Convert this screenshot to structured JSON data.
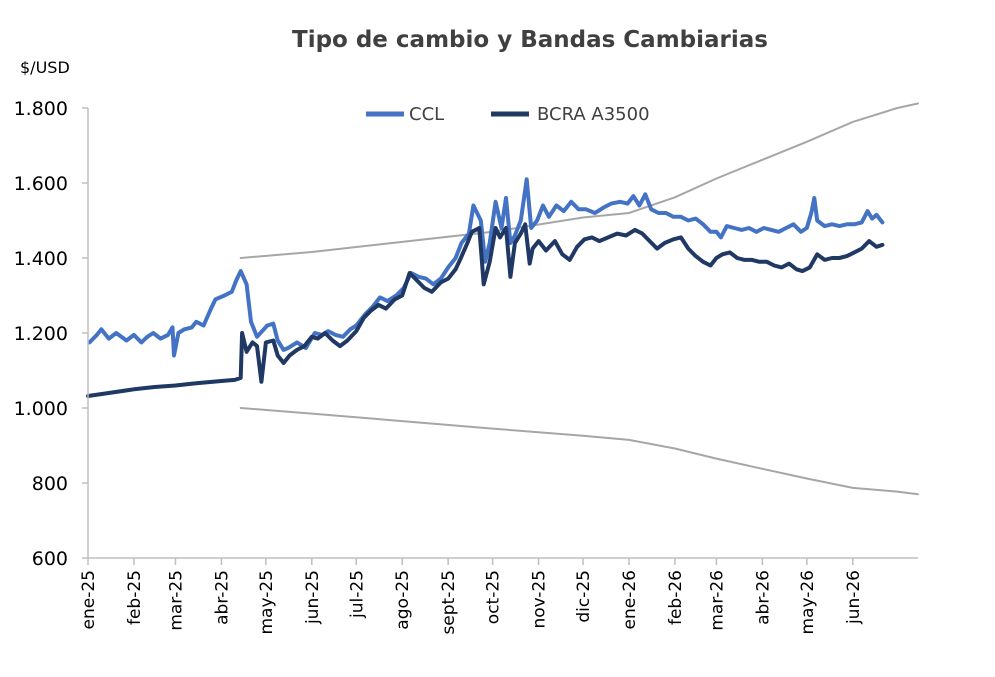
{
  "chart_data": {
    "type": "line",
    "title": "Tipo de cambio y Bandas Cambiarias",
    "ylabel": "$/USD",
    "xlabel": "",
    "ylim": [
      600,
      1800
    ],
    "yticks": [
      600,
      800,
      1000,
      1200,
      1400,
      1600,
      1800
    ],
    "ytick_labels": [
      "600",
      "800",
      "1.000",
      "1.200",
      "1.400",
      "1.600",
      "1.800"
    ],
    "x_start": "2025-01-01",
    "x_end": "2026-07-15",
    "x_tick_dates": [
      "2025-01-01",
      "2025-02-01",
      "2025-03-01",
      "2025-04-01",
      "2025-05-01",
      "2025-06-01",
      "2025-07-01",
      "2025-08-01",
      "2025-09-01",
      "2025-10-01",
      "2025-11-01",
      "2025-12-01",
      "2026-01-01",
      "2026-02-01",
      "2026-03-01",
      "2026-04-01",
      "2026-05-01",
      "2026-06-01"
    ],
    "x_tick_labels": [
      "ene-25",
      "feb-25",
      "mar-25",
      "abr-25",
      "may-25",
      "jun-25",
      "jul-25",
      "ago-25",
      "sept-25",
      "oct-25",
      "nov-25",
      "dic-25",
      "ene-26",
      "feb-26",
      "mar-26",
      "abr-26",
      "may-26",
      "jun-26"
    ],
    "legend_position": "top-center",
    "grid": false,
    "series": [
      {
        "name": "CCL",
        "color": "#4472C4",
        "points": [
          [
            "2025-01-02",
            1175
          ],
          [
            "2025-01-07",
            1195
          ],
          [
            "2025-01-10",
            1210
          ],
          [
            "2025-01-15",
            1185
          ],
          [
            "2025-01-20",
            1200
          ],
          [
            "2025-01-27",
            1180
          ],
          [
            "2025-02-01",
            1195
          ],
          [
            "2025-02-06",
            1175
          ],
          [
            "2025-02-10",
            1190
          ],
          [
            "2025-02-14",
            1200
          ],
          [
            "2025-02-19",
            1185
          ],
          [
            "2025-02-24",
            1195
          ],
          [
            "2025-02-27",
            1215
          ],
          [
            "2025-02-28",
            1140
          ],
          [
            "2025-03-03",
            1200
          ],
          [
            "2025-03-07",
            1210
          ],
          [
            "2025-03-12",
            1215
          ],
          [
            "2025-03-15",
            1230
          ],
          [
            "2025-03-20",
            1220
          ],
          [
            "2025-03-25",
            1265
          ],
          [
            "2025-03-28",
            1290
          ],
          [
            "2025-04-03",
            1300
          ],
          [
            "2025-04-08",
            1310
          ],
          [
            "2025-04-11",
            1340
          ],
          [
            "2025-04-14",
            1365
          ],
          [
            "2025-04-18",
            1330
          ],
          [
            "2025-04-21",
            1230
          ],
          [
            "2025-04-25",
            1190
          ],
          [
            "2025-05-02",
            1220
          ],
          [
            "2025-05-06",
            1225
          ],
          [
            "2025-05-09",
            1180
          ],
          [
            "2025-05-13",
            1155
          ],
          [
            "2025-05-16",
            1160
          ],
          [
            "2025-05-22",
            1175
          ],
          [
            "2025-05-28",
            1160
          ],
          [
            "2025-06-03",
            1200
          ],
          [
            "2025-06-08",
            1195
          ],
          [
            "2025-06-12",
            1205
          ],
          [
            "2025-06-17",
            1195
          ],
          [
            "2025-06-22",
            1190
          ],
          [
            "2025-06-27",
            1210
          ],
          [
            "2025-07-01",
            1220
          ],
          [
            "2025-07-07",
            1250
          ],
          [
            "2025-07-12",
            1270
          ],
          [
            "2025-07-17",
            1295
          ],
          [
            "2025-07-22",
            1285
          ],
          [
            "2025-07-28",
            1300
          ],
          [
            "2025-08-02",
            1320
          ],
          [
            "2025-08-07",
            1360
          ],
          [
            "2025-08-12",
            1350
          ],
          [
            "2025-08-17",
            1345
          ],
          [
            "2025-08-22",
            1330
          ],
          [
            "2025-08-27",
            1345
          ],
          [
            "2025-09-01",
            1375
          ],
          [
            "2025-09-06",
            1400
          ],
          [
            "2025-09-10",
            1440
          ],
          [
            "2025-09-15",
            1465
          ],
          [
            "2025-09-18",
            1540
          ],
          [
            "2025-09-23",
            1500
          ],
          [
            "2025-09-26",
            1390
          ],
          [
            "2025-09-29",
            1440
          ],
          [
            "2025-10-03",
            1550
          ],
          [
            "2025-10-07",
            1480
          ],
          [
            "2025-10-10",
            1560
          ],
          [
            "2025-10-13",
            1440
          ],
          [
            "2025-10-16",
            1460
          ],
          [
            "2025-10-20",
            1500
          ],
          [
            "2025-10-24",
            1610
          ],
          [
            "2025-10-27",
            1480
          ],
          [
            "2025-10-31",
            1500
          ],
          [
            "2025-11-04",
            1540
          ],
          [
            "2025-11-08",
            1510
          ],
          [
            "2025-11-13",
            1540
          ],
          [
            "2025-11-18",
            1525
          ],
          [
            "2025-11-23",
            1550
          ],
          [
            "2025-11-28",
            1530
          ],
          [
            "2025-12-03",
            1530
          ],
          [
            "2025-12-09",
            1520
          ],
          [
            "2025-12-15",
            1535
          ],
          [
            "2025-12-20",
            1545
          ],
          [
            "2025-12-26",
            1550
          ],
          [
            "2025-12-31",
            1545
          ],
          [
            "2026-01-04",
            1565
          ],
          [
            "2026-01-08",
            1540
          ],
          [
            "2026-01-12",
            1570
          ],
          [
            "2026-01-16",
            1530
          ],
          [
            "2026-01-21",
            1520
          ],
          [
            "2026-01-26",
            1520
          ],
          [
            "2026-01-31",
            1510
          ],
          [
            "2026-02-05",
            1510
          ],
          [
            "2026-02-10",
            1500
          ],
          [
            "2026-02-15",
            1505
          ],
          [
            "2026-02-20",
            1490
          ],
          [
            "2026-02-25",
            1470
          ],
          [
            "2026-03-01",
            1470
          ],
          [
            "2026-03-04",
            1455
          ],
          [
            "2026-03-08",
            1485
          ],
          [
            "2026-03-13",
            1480
          ],
          [
            "2026-03-18",
            1475
          ],
          [
            "2026-03-23",
            1480
          ],
          [
            "2026-03-28",
            1470
          ],
          [
            "2026-04-02",
            1480
          ],
          [
            "2026-04-07",
            1475
          ],
          [
            "2026-04-12",
            1470
          ],
          [
            "2026-04-17",
            1480
          ],
          [
            "2026-04-22",
            1490
          ],
          [
            "2026-04-27",
            1470
          ],
          [
            "2026-05-01",
            1480
          ],
          [
            "2026-05-04",
            1520
          ],
          [
            "2026-05-06",
            1560
          ],
          [
            "2026-05-08",
            1500
          ],
          [
            "2026-05-13",
            1485
          ],
          [
            "2026-05-18",
            1490
          ],
          [
            "2026-05-23",
            1485
          ],
          [
            "2026-05-28",
            1490
          ],
          [
            "2026-06-02",
            1490
          ],
          [
            "2026-06-07",
            1495
          ],
          [
            "2026-06-11",
            1525
          ],
          [
            "2026-06-14",
            1505
          ],
          [
            "2026-06-17",
            1515
          ],
          [
            "2026-06-21",
            1495
          ]
        ]
      },
      {
        "name": "BCRA A3500",
        "color": "#1F3864",
        "points": [
          [
            "2025-01-01",
            1032
          ],
          [
            "2025-01-15",
            1040
          ],
          [
            "2025-02-01",
            1050
          ],
          [
            "2025-02-15",
            1056
          ],
          [
            "2025-03-01",
            1060
          ],
          [
            "2025-03-15",
            1066
          ],
          [
            "2025-04-01",
            1072
          ],
          [
            "2025-04-10",
            1075
          ],
          [
            "2025-04-14",
            1080
          ],
          [
            "2025-04-15",
            1200
          ],
          [
            "2025-04-18",
            1150
          ],
          [
            "2025-04-22",
            1175
          ],
          [
            "2025-04-25",
            1165
          ],
          [
            "2025-04-28",
            1070
          ],
          [
            "2025-05-01",
            1175
          ],
          [
            "2025-05-06",
            1180
          ],
          [
            "2025-05-09",
            1140
          ],
          [
            "2025-05-13",
            1120
          ],
          [
            "2025-05-17",
            1140
          ],
          [
            "2025-05-22",
            1155
          ],
          [
            "2025-05-27",
            1165
          ],
          [
            "2025-06-01",
            1190
          ],
          [
            "2025-06-05",
            1185
          ],
          [
            "2025-06-10",
            1200
          ],
          [
            "2025-06-15",
            1180
          ],
          [
            "2025-06-20",
            1165
          ],
          [
            "2025-06-25",
            1180
          ],
          [
            "2025-07-01",
            1205
          ],
          [
            "2025-07-06",
            1240
          ],
          [
            "2025-07-11",
            1260
          ],
          [
            "2025-07-16",
            1275
          ],
          [
            "2025-07-21",
            1265
          ],
          [
            "2025-07-27",
            1290
          ],
          [
            "2025-08-01",
            1300
          ],
          [
            "2025-08-06",
            1360
          ],
          [
            "2025-08-11",
            1340
          ],
          [
            "2025-08-16",
            1320
          ],
          [
            "2025-08-21",
            1310
          ],
          [
            "2025-08-27",
            1335
          ],
          [
            "2025-09-01",
            1345
          ],
          [
            "2025-09-06",
            1370
          ],
          [
            "2025-09-09",
            1395
          ],
          [
            "2025-09-14",
            1440
          ],
          [
            "2025-09-17",
            1470
          ],
          [
            "2025-09-22",
            1480
          ],
          [
            "2025-09-25",
            1330
          ],
          [
            "2025-09-29",
            1390
          ],
          [
            "2025-10-03",
            1480
          ],
          [
            "2025-10-06",
            1455
          ],
          [
            "2025-10-10",
            1480
          ],
          [
            "2025-10-13",
            1350
          ],
          [
            "2025-10-16",
            1440
          ],
          [
            "2025-10-20",
            1465
          ],
          [
            "2025-10-23",
            1490
          ],
          [
            "2025-10-26",
            1385
          ],
          [
            "2025-10-28",
            1425
          ],
          [
            "2025-11-01",
            1445
          ],
          [
            "2025-11-06",
            1420
          ],
          [
            "2025-11-12",
            1445
          ],
          [
            "2025-11-17",
            1410
          ],
          [
            "2025-11-22",
            1395
          ],
          [
            "2025-11-27",
            1430
          ],
          [
            "2025-12-02",
            1450
          ],
          [
            "2025-12-07",
            1455
          ],
          [
            "2025-12-12",
            1445
          ],
          [
            "2025-12-18",
            1455
          ],
          [
            "2025-12-24",
            1465
          ],
          [
            "2025-12-30",
            1460
          ],
          [
            "2026-01-05",
            1475
          ],
          [
            "2026-01-10",
            1465
          ],
          [
            "2026-01-15",
            1445
          ],
          [
            "2026-01-20",
            1425
          ],
          [
            "2026-01-25",
            1440
          ],
          [
            "2026-01-31",
            1450
          ],
          [
            "2026-02-05",
            1455
          ],
          [
            "2026-02-10",
            1425
          ],
          [
            "2026-02-15",
            1405
          ],
          [
            "2026-02-20",
            1390
          ],
          [
            "2026-02-25",
            1380
          ],
          [
            "2026-03-01",
            1400
          ],
          [
            "2026-03-05",
            1410
          ],
          [
            "2026-03-10",
            1415
          ],
          [
            "2026-03-15",
            1400
          ],
          [
            "2026-03-20",
            1395
          ],
          [
            "2026-03-25",
            1395
          ],
          [
            "2026-03-30",
            1390
          ],
          [
            "2026-04-04",
            1390
          ],
          [
            "2026-04-09",
            1380
          ],
          [
            "2026-04-14",
            1375
          ],
          [
            "2026-04-19",
            1385
          ],
          [
            "2026-04-24",
            1370
          ],
          [
            "2026-04-28",
            1365
          ],
          [
            "2026-05-03",
            1375
          ],
          [
            "2026-05-08",
            1410
          ],
          [
            "2026-05-13",
            1395
          ],
          [
            "2026-05-18",
            1400
          ],
          [
            "2026-05-23",
            1400
          ],
          [
            "2026-05-28",
            1405
          ],
          [
            "2026-06-02",
            1415
          ],
          [
            "2026-06-07",
            1425
          ],
          [
            "2026-06-12",
            1445
          ],
          [
            "2026-06-17",
            1430
          ],
          [
            "2026-06-21",
            1435
          ]
        ]
      },
      {
        "color": "#A6A6A6",
        "points": [
          [
            "2025-04-14",
            1400
          ],
          [
            "2025-06-01",
            1416
          ],
          [
            "2025-08-01",
            1443
          ],
          [
            "2025-10-01",
            1470
          ],
          [
            "2025-12-01",
            1508
          ],
          [
            "2026-01-01",
            1520
          ],
          [
            "2026-02-01",
            1562
          ],
          [
            "2026-03-01",
            1612
          ],
          [
            "2026-04-01",
            1662
          ],
          [
            "2026-05-01",
            1710
          ],
          [
            "2026-06-01",
            1763
          ],
          [
            "2026-07-01",
            1800
          ],
          [
            "2026-07-15",
            1812
          ]
        ]
      },
      {
        "color": "#A6A6A6",
        "points": [
          [
            "2025-04-14",
            1000
          ],
          [
            "2025-06-01",
            985
          ],
          [
            "2025-08-01",
            965
          ],
          [
            "2025-10-01",
            945
          ],
          [
            "2025-12-01",
            926
          ],
          [
            "2026-01-01",
            915
          ],
          [
            "2026-02-01",
            892
          ],
          [
            "2026-03-01",
            865
          ],
          [
            "2026-04-01",
            838
          ],
          [
            "2026-05-01",
            812
          ],
          [
            "2026-06-01",
            787
          ],
          [
            "2026-07-01",
            777
          ],
          [
            "2026-07-15",
            770
          ]
        ]
      }
    ]
  }
}
